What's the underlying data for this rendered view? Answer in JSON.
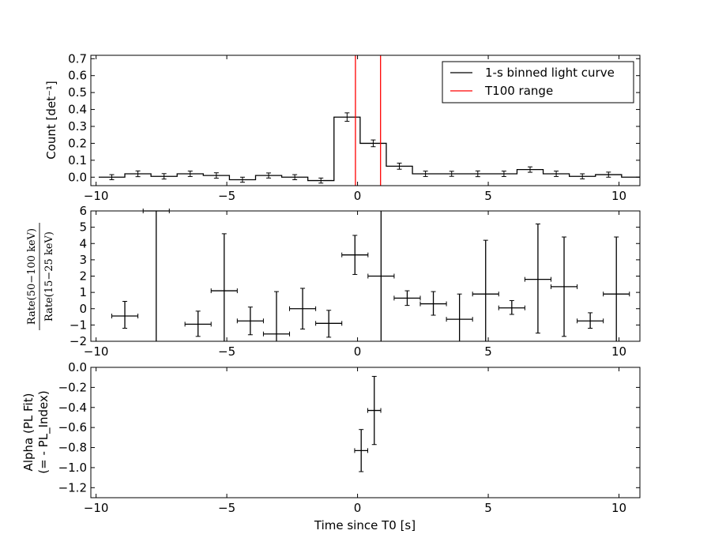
{
  "chart_data": [
    {
      "type": "line",
      "xlim": [
        -10.2,
        10.8
      ],
      "ylim": [
        -0.05,
        0.72
      ],
      "ylabel": "Count [det⁻¹]",
      "xticks": [
        "−10",
        "−5",
        "0",
        "5",
        "10"
      ],
      "yticks": [
        "0.0",
        "0.1",
        "0.2",
        "0.3",
        "0.4",
        "0.5",
        "0.6",
        "0.7"
      ],
      "grid": false,
      "legend_position": "top-right",
      "series": [
        {
          "name": "1-s binned light curve",
          "color": "#000000",
          "style": "steps-mid",
          "x": [
            -9.4,
            -8.4,
            -7.4,
            -6.4,
            -5.4,
            -4.4,
            -3.4,
            -2.4,
            -1.4,
            -0.4,
            0.6,
            1.6,
            2.6,
            3.6,
            4.6,
            5.6,
            6.6,
            7.6,
            8.6,
            9.6,
            10.6
          ],
          "y": [
            0.0,
            0.02,
            0.005,
            0.02,
            0.01,
            -0.015,
            0.01,
            0.0,
            -0.02,
            0.355,
            0.2,
            0.065,
            0.02,
            0.02,
            0.02,
            0.02,
            0.045,
            0.02,
            0.005,
            0.015,
            0.0
          ],
          "yerr": [
            0.015,
            0.017,
            0.016,
            0.016,
            0.016,
            0.015,
            0.015,
            0.015,
            0.015,
            0.025,
            0.02,
            0.018,
            0.016,
            0.015,
            0.017,
            0.016,
            0.016,
            0.016,
            0.015,
            0.015,
            0.0
          ]
        },
        {
          "name": "T100 range",
          "color": "#ff0000",
          "style": "vlines",
          "x": [
            -0.08,
            0.88
          ]
        }
      ]
    },
    {
      "type": "scatter",
      "xlim": [
        -10.2,
        10.8
      ],
      "ylim": [
        -2,
        6
      ],
      "ylabel_numerator": "Rate(50−100 keV)",
      "ylabel_denominator": "Rate(15−25 keV)",
      "xticks": [
        "−10",
        "−5",
        "0",
        "5",
        "10"
      ],
      "yticks": [
        "−2",
        "−1",
        "0",
        "1",
        "2",
        "3",
        "4",
        "5",
        "6"
      ],
      "grid": false,
      "series": [
        {
          "color": "#000000",
          "x": [
            -8.9,
            -7.7,
            -6.1,
            -5.1,
            -4.1,
            -3.1,
            -2.1,
            -1.1,
            -0.1,
            0.9,
            1.9,
            2.9,
            3.9,
            4.9,
            5.9,
            6.9,
            7.9,
            8.9,
            9.9
          ],
          "xerr": 0.5,
          "y": [
            -0.45,
            6.0,
            -0.95,
            1.1,
            -0.75,
            -1.55,
            0.0,
            -0.9,
            3.3,
            2.0,
            0.65,
            0.3,
            -0.65,
            0.9,
            0.05,
            1.8,
            1.35,
            -0.75,
            0.9
          ],
          "yerr_low": [
            0.75,
            8.0,
            0.75,
            7.0,
            0.85,
            2.6,
            1.25,
            0.85,
            1.2,
            4.0,
            0.45,
            0.7,
            1.6,
            7.0,
            0.4,
            3.3,
            3.05,
            0.45,
            3.5
          ],
          "yerr_high": [
            0.9,
            0.0,
            0.8,
            3.5,
            0.85,
            2.6,
            1.25,
            0.8,
            1.2,
            4.0,
            0.45,
            0.75,
            1.55,
            3.3,
            0.45,
            3.4,
            3.05,
            0.5,
            3.5
          ]
        }
      ]
    },
    {
      "type": "scatter",
      "xlim": [
        -10.2,
        10.8
      ],
      "ylim": [
        -1.3,
        0.0
      ],
      "ylabel": "Alpha (PL Fit)",
      "ylabel_line2": "(= - PL_Index)",
      "xlabel": "Time since T0 [s]",
      "xticks": [
        "−10",
        "−5",
        "0",
        "5",
        "10"
      ],
      "yticks": [
        "0.0",
        "−0.2",
        "−0.4",
        "−0.6",
        "−0.8",
        "−1.0",
        "−1.2"
      ],
      "grid": false,
      "series": [
        {
          "color": "#000000",
          "x": [
            0.14,
            0.64
          ],
          "xerr": 0.25,
          "y": [
            -0.83,
            -0.43
          ],
          "yerr": [
            0.21,
            0.34
          ]
        }
      ]
    }
  ]
}
